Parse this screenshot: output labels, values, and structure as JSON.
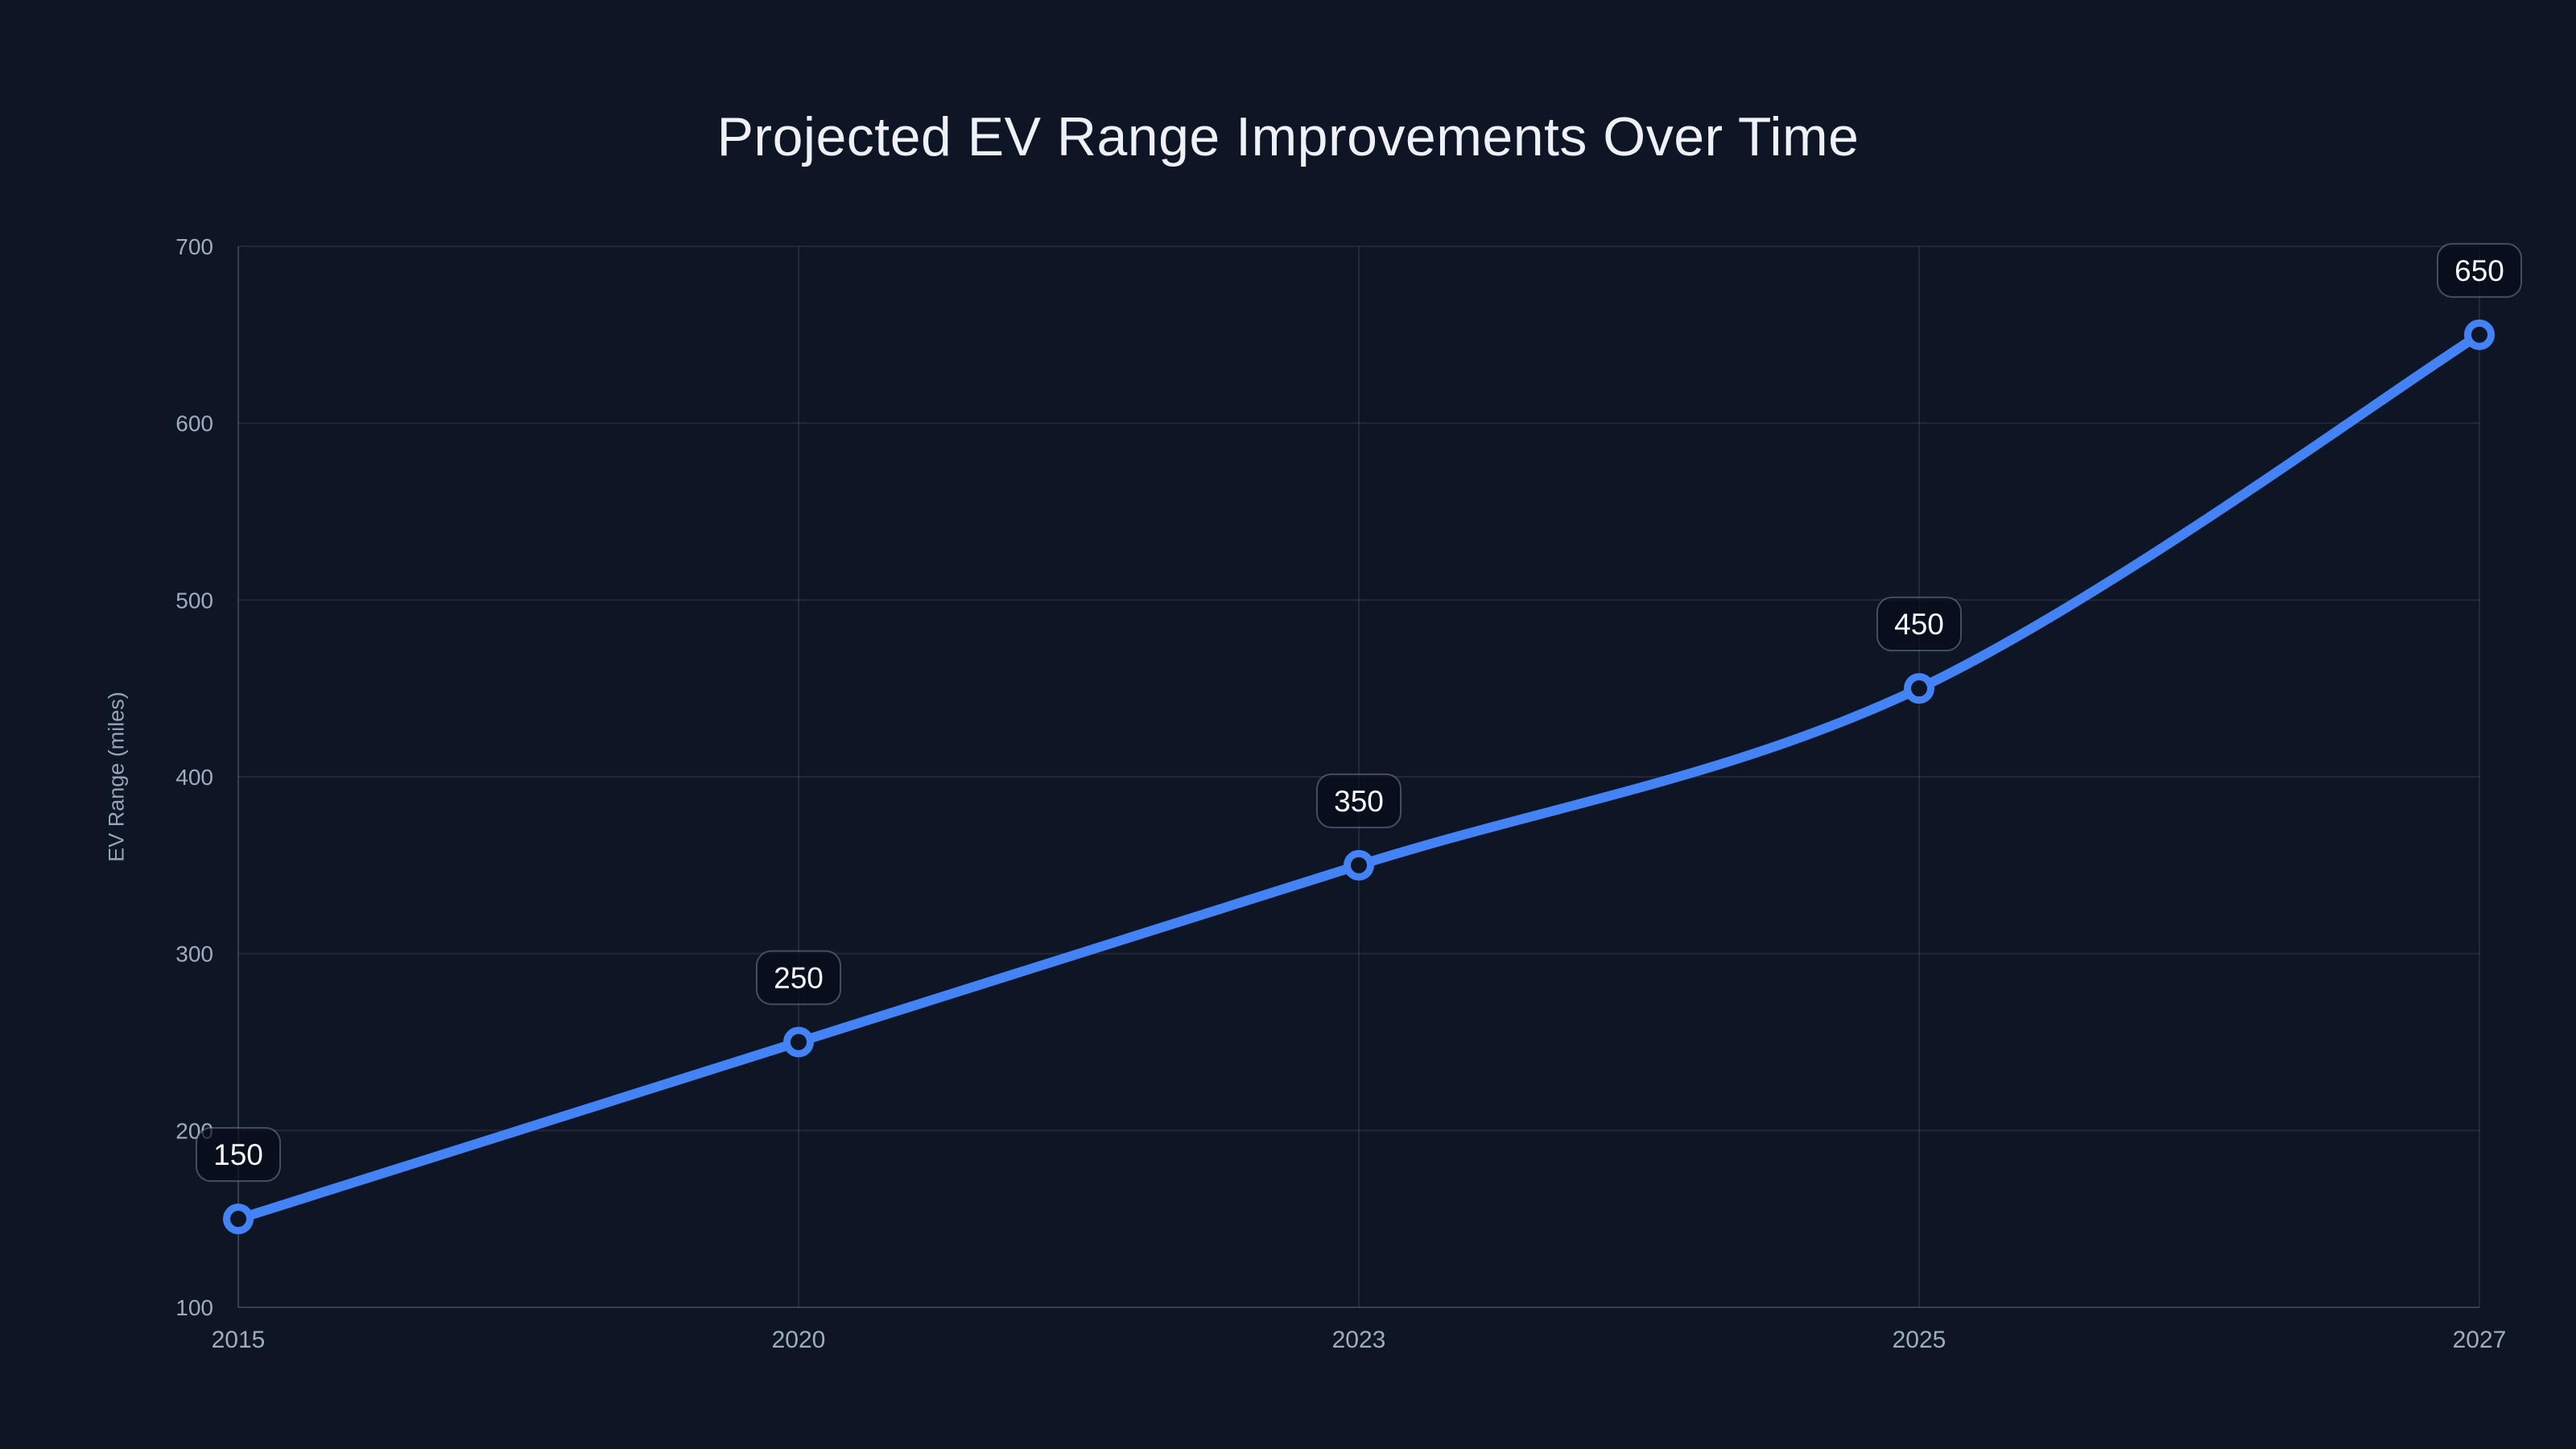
{
  "chart_data": {
    "type": "line",
    "title": "Projected EV Range Improvements Over Time",
    "categories": [
      "2015",
      "2020",
      "2023",
      "2025",
      "2027"
    ],
    "series": [
      {
        "name": "EV Range",
        "values": [
          150,
          250,
          350,
          450,
          650
        ]
      }
    ],
    "point_labels": [
      "150",
      "250",
      "350",
      "450",
      "650"
    ],
    "xlabel": "",
    "ylabel": "EV Range (miles)",
    "ylim": [
      100,
      700
    ],
    "yticks": [
      100,
      200,
      300,
      400,
      500,
      600,
      700
    ],
    "grid": true,
    "legend": "none",
    "curve": "smooth",
    "marker": "open-circle"
  },
  "theme": {
    "background": "#0e1524",
    "title_color": "#eef2f7",
    "tick_color": "#a0acbe",
    "axis_title_color": "#95a3b7",
    "grid_color": "rgba(160,172,190,0.13)",
    "axis_line_color": "rgba(160,172,190,0.28)",
    "line_color": "#4483f5",
    "marker_fill": "#0e1524",
    "badge_bg": "rgba(8,13,26,0.72)",
    "badge_border": "rgba(148,163,184,0.42)",
    "badge_text_color": "#f7fafc"
  }
}
